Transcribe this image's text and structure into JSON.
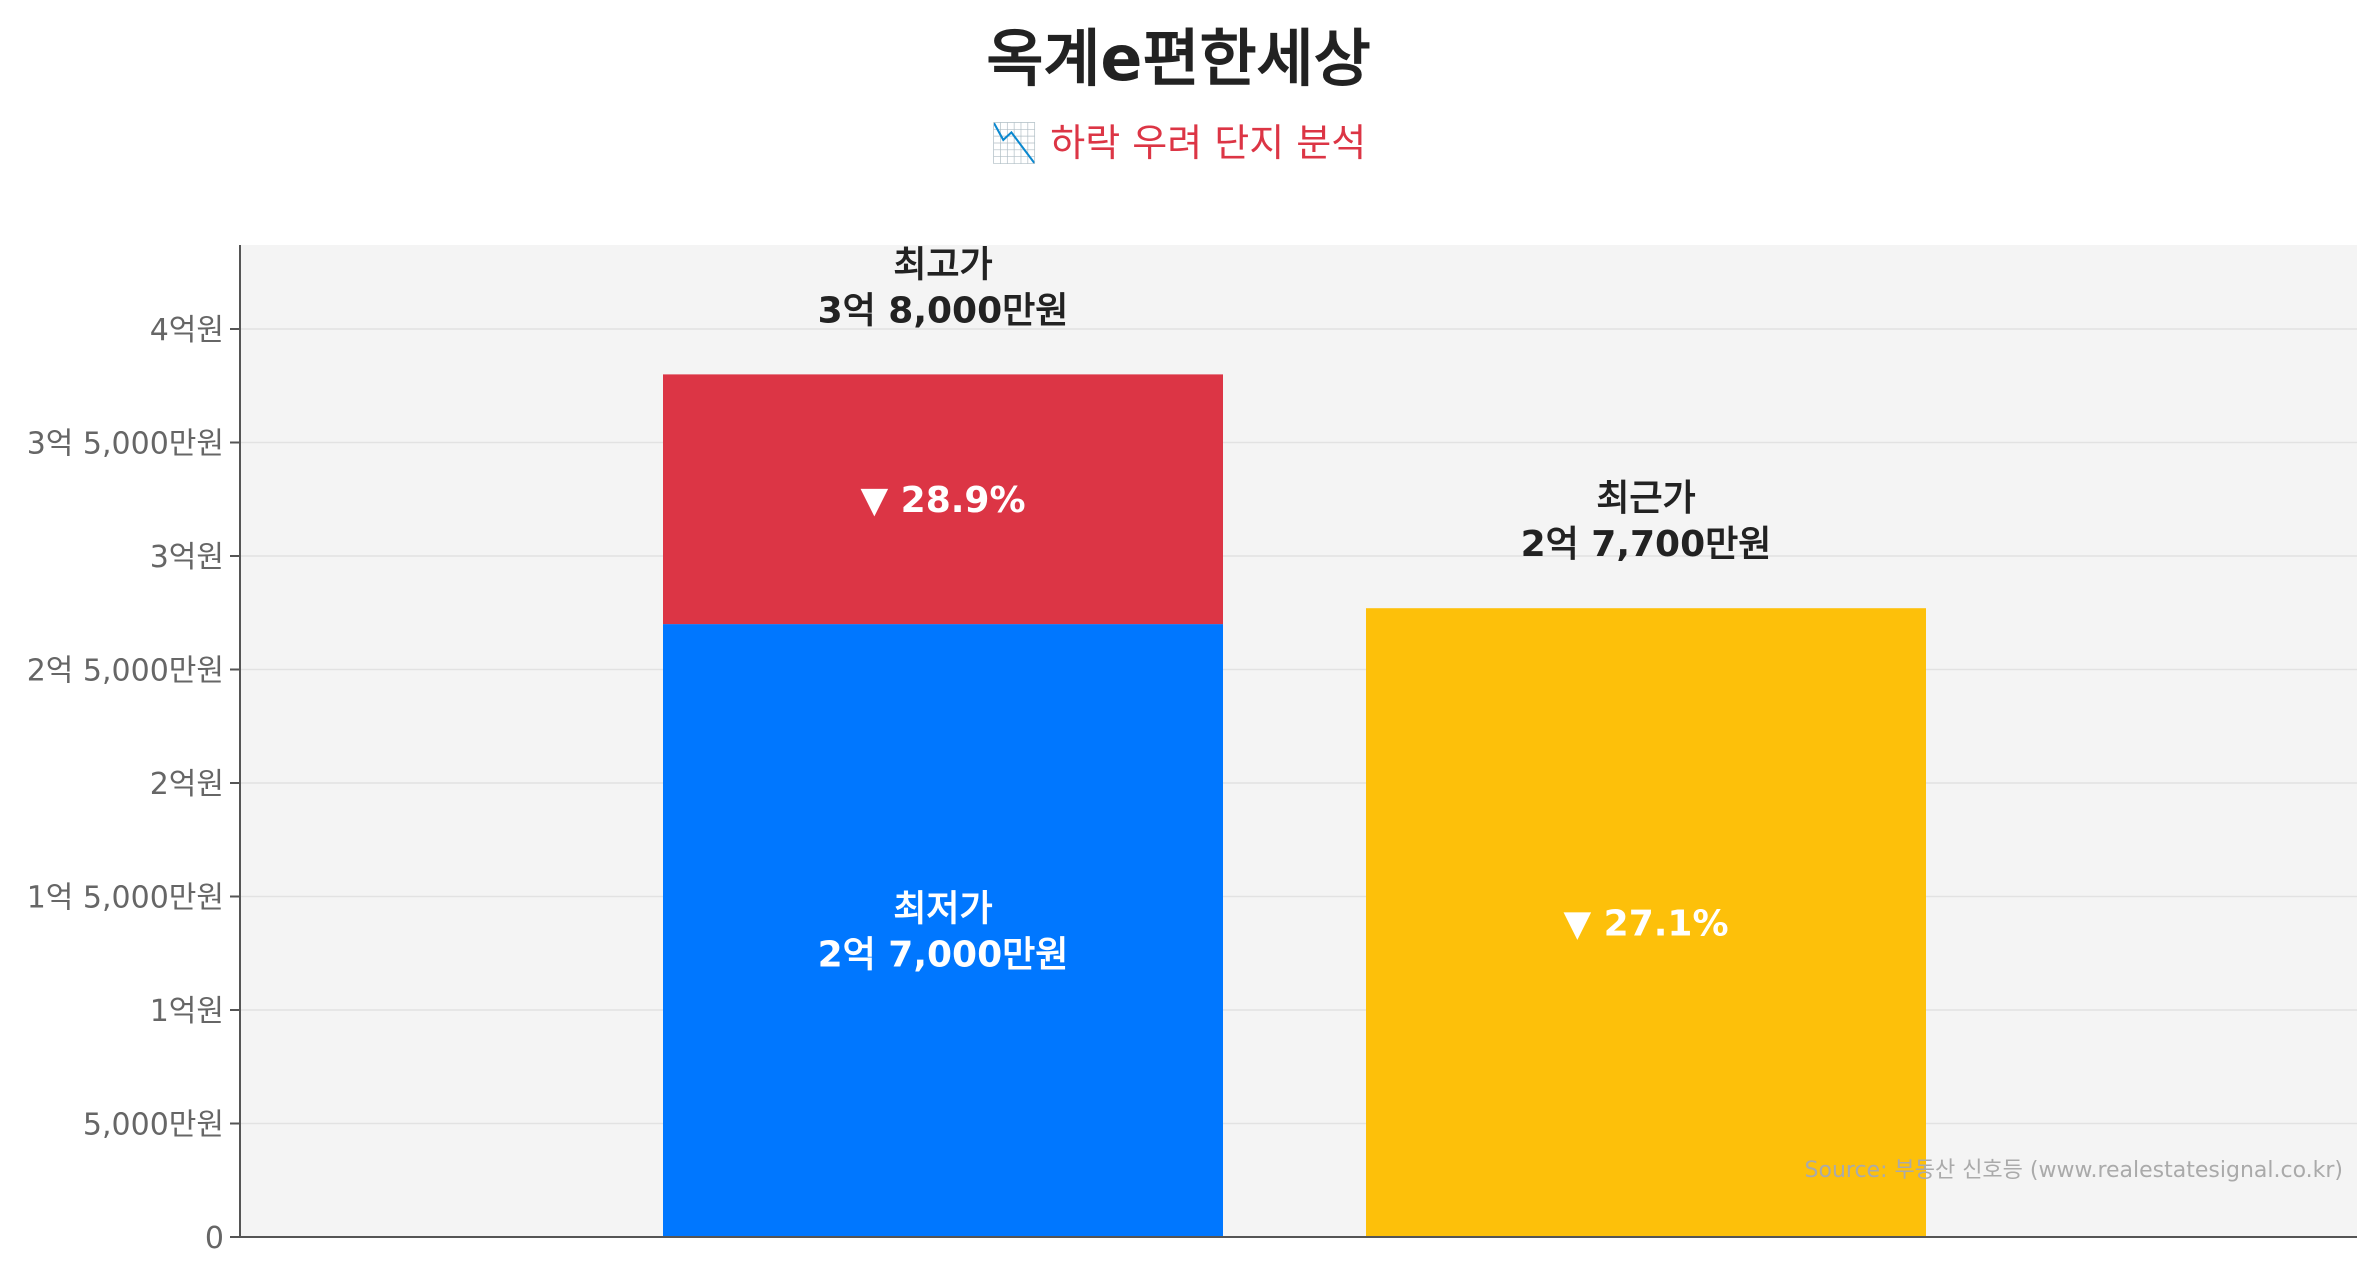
{
  "title": "옥계e편한세상",
  "subtitle": "📉 하락 우려 단지 분석",
  "source": "Source: 부동산 신호등 (www.realestatesignal.co.kr)",
  "colors": {
    "plot_bg": "#f4f4f4",
    "grid": "#e2e2e2",
    "axis": "#555555",
    "low": "#0077ff",
    "high_drop": "#dc3545",
    "recent": "#fdc00a",
    "dark_text": "#222222",
    "light_text": "#ffffff"
  },
  "chart_data": {
    "type": "bar",
    "unit": "만원",
    "ylim": [
      0,
      43700
    ],
    "y_ticks": [
      {
        "value": 0,
        "label": "0"
      },
      {
        "value": 5000,
        "label": "5,000만원"
      },
      {
        "value": 10000,
        "label": "1억원"
      },
      {
        "value": 15000,
        "label": "1억 5,000만원"
      },
      {
        "value": 20000,
        "label": "2억원"
      },
      {
        "value": 25000,
        "label": "2억 5,000만원"
      },
      {
        "value": 30000,
        "label": "3억원"
      },
      {
        "value": 35000,
        "label": "3억 5,000만원"
      },
      {
        "value": 40000,
        "label": "4억원"
      }
    ],
    "grid": true,
    "bars": [
      {
        "position": 1,
        "segments": [
          {
            "name": "최저가",
            "from": 0,
            "to": 27000,
            "color": "#0077ff",
            "label_lines": [
              "최저가",
              "2억 7,000만원"
            ],
            "label_color": "#ffffff"
          },
          {
            "name": "drop",
            "from": 27000,
            "to": 38000,
            "color": "#dc3545",
            "label_lines": [
              "▼ 28.9%"
            ],
            "label_color": "#ffffff"
          }
        ],
        "top_label_lines": [
          "최고가",
          "3억 8,000만원"
        ],
        "top_label_color": "#222222"
      },
      {
        "position": 2,
        "segments": [
          {
            "name": "최근가",
            "from": 0,
            "to": 27700,
            "color": "#fdc00a",
            "label_lines": [
              "▼ 27.1%"
            ],
            "label_color": "#ffffff"
          }
        ],
        "top_label_lines": [
          "최근가",
          "2억 7,700만원"
        ],
        "top_label_color": "#222222"
      }
    ]
  }
}
